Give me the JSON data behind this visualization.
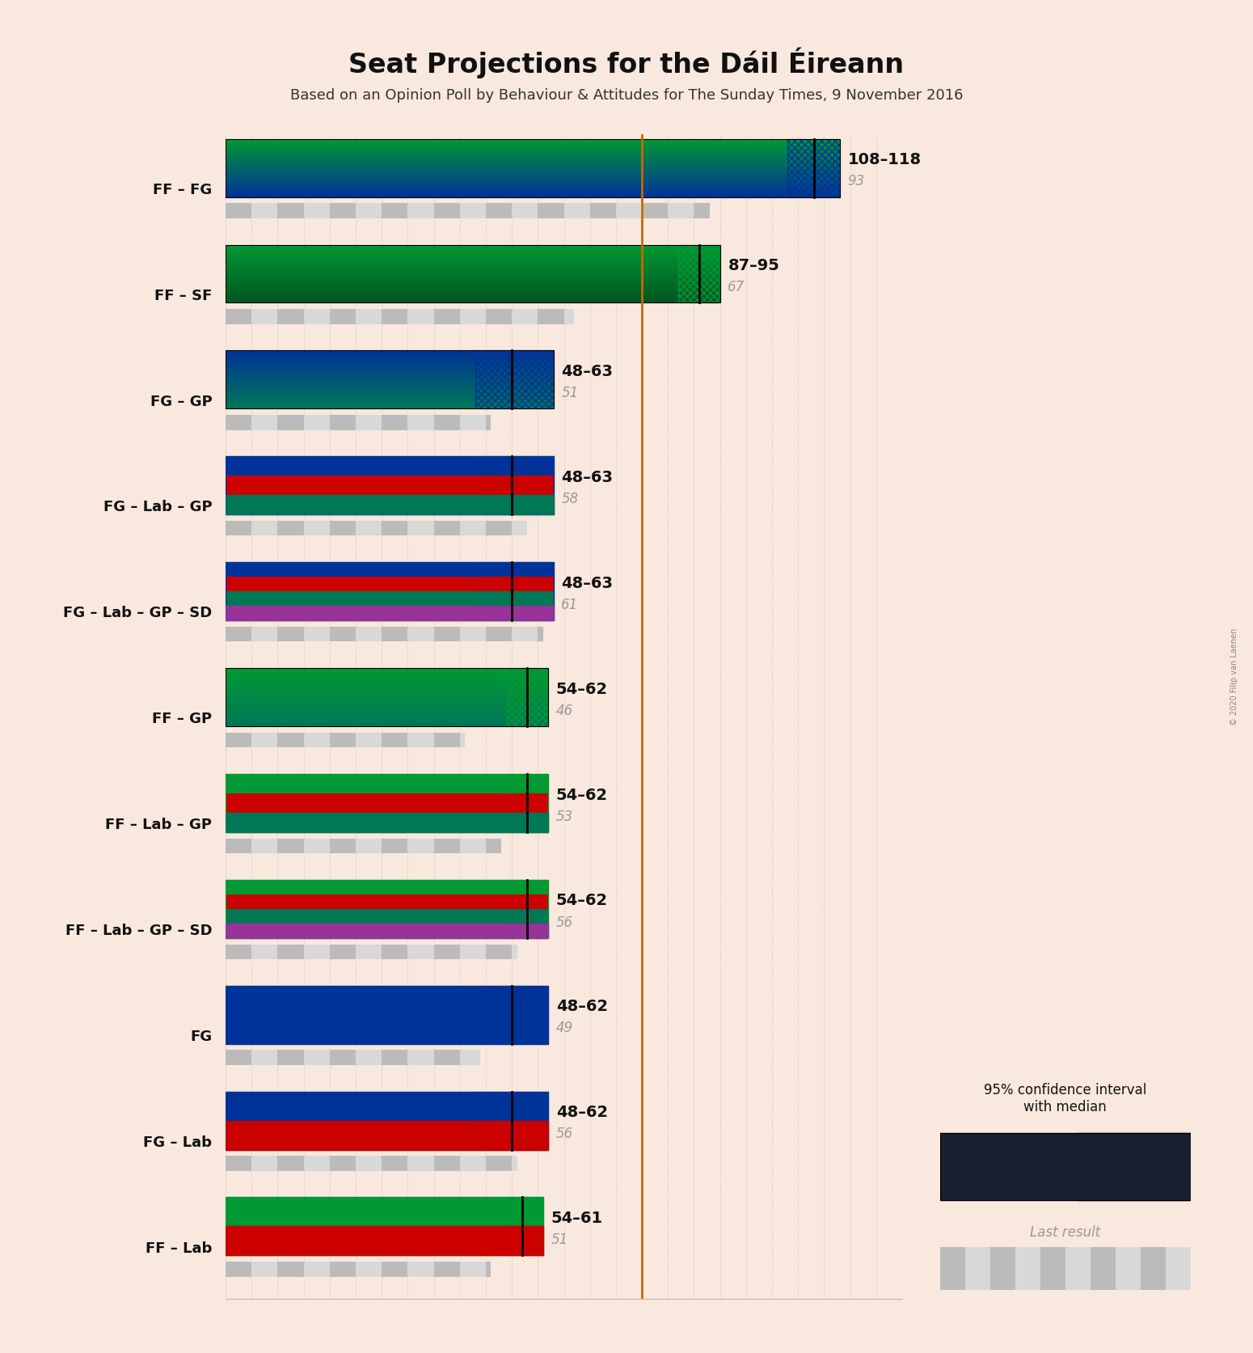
{
  "title": "Seat Projections for the Dáil Éireann",
  "subtitle": "Based on an Opinion Poll by Behaviour & Attitudes for The Sunday Times, 9 November 2016",
  "copyright": "© 2020 Filip van Laenen",
  "background_color": "#f9e8dd",
  "majority_line": 80,
  "majority_line_color": "#cc6600",
  "coalitions": [
    {
      "label": "FF – FG",
      "min": 108,
      "max": 118,
      "median": 113,
      "last": 93,
      "colors": [
        "#009933",
        "#003399"
      ],
      "gradient": true,
      "hatch_color": "#003399"
    },
    {
      "label": "FF – SF",
      "min": 87,
      "max": 95,
      "median": 91,
      "last": 67,
      "colors": [
        "#009933",
        "#005522"
      ],
      "gradient": true,
      "hatch_color": "#009933"
    },
    {
      "label": "FG – GP",
      "min": 48,
      "max": 63,
      "median": 55,
      "last": 51,
      "colors": [
        "#003399",
        "#007755"
      ],
      "gradient": true,
      "hatch_color": "#003399"
    },
    {
      "label": "FG – Lab – GP",
      "min": 48,
      "max": 63,
      "median": 55,
      "last": 58,
      "colors": [
        "#003399",
        "#cc0000",
        "#007755"
      ],
      "gradient": false,
      "hatch_color": "#003399"
    },
    {
      "label": "FG – Lab – GP – SD",
      "min": 48,
      "max": 63,
      "median": 55,
      "last": 61,
      "colors": [
        "#003399",
        "#cc0000",
        "#007755",
        "#993399"
      ],
      "gradient": false,
      "hatch_color": "#003399"
    },
    {
      "label": "FF – GP",
      "min": 54,
      "max": 62,
      "median": 58,
      "last": 46,
      "colors": [
        "#009933",
        "#007755"
      ],
      "gradient": true,
      "hatch_color": "#009933"
    },
    {
      "label": "FF – Lab – GP",
      "min": 54,
      "max": 62,
      "median": 58,
      "last": 53,
      "colors": [
        "#009933",
        "#cc0000",
        "#007755"
      ],
      "gradient": false,
      "hatch_color": "#009933"
    },
    {
      "label": "FF – Lab – GP – SD",
      "min": 54,
      "max": 62,
      "median": 58,
      "last": 56,
      "colors": [
        "#009933",
        "#cc0000",
        "#007755",
        "#993399"
      ],
      "gradient": false,
      "hatch_color": "#009933"
    },
    {
      "label": "FG",
      "min": 48,
      "max": 62,
      "median": 55,
      "last": 49,
      "colors": [
        "#003399"
      ],
      "gradient": false,
      "hatch_color": "#003399"
    },
    {
      "label": "FG – Lab",
      "min": 48,
      "max": 62,
      "median": 55,
      "last": 56,
      "colors": [
        "#003399",
        "#cc0000"
      ],
      "gradient": false,
      "hatch_color": "#003399"
    },
    {
      "label": "FF – Lab",
      "min": 54,
      "max": 61,
      "median": 57,
      "last": 51,
      "colors": [
        "#009933",
        "#cc0000"
      ],
      "gradient": false,
      "hatch_color": "#009933"
    }
  ],
  "xmax": 130,
  "tick_interval": 10,
  "grid_interval": 5,
  "legend_label_ci": "95% confidence interval\nwith median",
  "legend_label_last": "Last result"
}
